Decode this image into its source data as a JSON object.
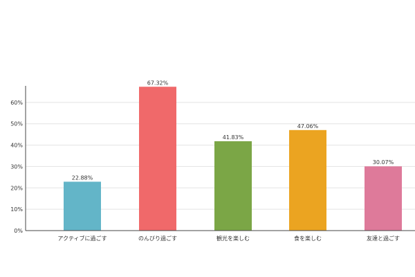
{
  "chart_data": {
    "type": "bar",
    "categories": [
      "アクティブに過ごす",
      "のんびり過ごす",
      "観光を楽しむ",
      "食を楽しむ",
      "友達と過ごす"
    ],
    "values": [
      22.88,
      67.32,
      41.83,
      47.06,
      30.07
    ],
    "value_labels": [
      "22.88%",
      "67.32%",
      "41.83%",
      "47.06%",
      "30.07%"
    ],
    "colors": [
      "#63b5c8",
      "#f0696a",
      "#7ba646",
      "#eba421",
      "#de7a9a"
    ],
    "ylim": [
      0,
      70
    ],
    "yticks": [
      0,
      10,
      20,
      30,
      40,
      50,
      60
    ],
    "ytick_labels": [
      "0%",
      "10%",
      "20%",
      "30%",
      "40%",
      "50%",
      "60%"
    ],
    "grid": true,
    "title": "",
    "xlabel": "",
    "ylabel": ""
  }
}
